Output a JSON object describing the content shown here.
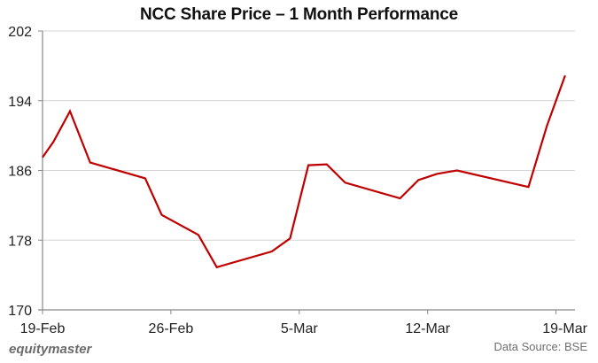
{
  "chart_data": {
    "type": "line",
    "title": "NCC Share Price – 1 Month Performance",
    "xlabel": "",
    "ylabel": "",
    "ylim": [
      170,
      202
    ],
    "yticks": [
      170,
      178,
      186,
      194,
      202
    ],
    "xticks": [
      "19-Feb",
      "26-Feb",
      "5-Mar",
      "12-Mar",
      "19-Mar"
    ],
    "grid": "horizontal",
    "legend": "none",
    "line_color": "#c00000",
    "series": [
      {
        "name": "NCC",
        "points": [
          {
            "date": "19-Feb",
            "day": 0.0,
            "value": 187.5
          },
          {
            "date": "20-Feb",
            "day": 0.6,
            "value": 189.3
          },
          {
            "date": "21-Feb",
            "day": 1.5,
            "value": 192.8
          },
          {
            "date": "22-Feb",
            "day": 2.6,
            "value": 186.9
          },
          {
            "date": "25-Feb",
            "day": 5.6,
            "value": 185.1
          },
          {
            "date": "26-Feb",
            "day": 6.5,
            "value": 180.9
          },
          {
            "date": "28-Feb",
            "day": 8.5,
            "value": 178.6
          },
          {
            "date": "1-Mar",
            "day": 9.5,
            "value": 174.9
          },
          {
            "date": "4-Mar",
            "day": 12.5,
            "value": 176.7
          },
          {
            "date": "5-Mar",
            "day": 13.5,
            "value": 178.2
          },
          {
            "date": "6-Mar",
            "day": 14.5,
            "value": 186.6
          },
          {
            "date": "7-Mar",
            "day": 15.5,
            "value": 186.7
          },
          {
            "date": "8-Mar",
            "day": 16.5,
            "value": 184.6
          },
          {
            "date": "11-Mar",
            "day": 19.5,
            "value": 182.8
          },
          {
            "date": "12-Mar",
            "day": 20.5,
            "value": 184.9
          },
          {
            "date": "13-Mar",
            "day": 21.5,
            "value": 185.6
          },
          {
            "date": "14-Mar",
            "day": 22.6,
            "value": 186.0
          },
          {
            "date": "18-Mar",
            "day": 26.5,
            "value": 184.1
          },
          {
            "date": "19-Mar",
            "day": 27.5,
            "value": 191.1
          },
          {
            "date": "20-Mar",
            "day": 28.5,
            "value": 196.9
          }
        ]
      }
    ]
  },
  "footer": {
    "brand": "equitymaster",
    "source": "Data Source: BSE"
  }
}
